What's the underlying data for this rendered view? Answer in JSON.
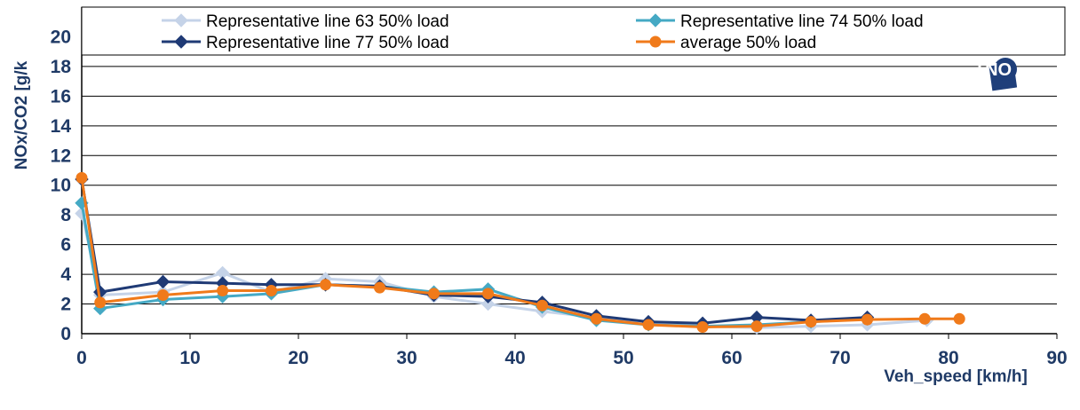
{
  "chart_data": {
    "type": "line",
    "xlabel": "Veh_speed [km/h]",
    "ylabel": "NOx/CO2 [g/k",
    "xlim": [
      0,
      90
    ],
    "ylim": [
      0,
      22
    ],
    "x_ticks": [
      "0",
      "10",
      "20",
      "30",
      "40",
      "50",
      "60",
      "70",
      "80",
      "90"
    ],
    "y_ticks": [
      "0",
      "2",
      "4",
      "6",
      "8",
      "10",
      "12",
      "14",
      "16",
      "18",
      "20"
    ],
    "grid": "horizontal",
    "legend_position": "top",
    "series": [
      {
        "name": "Representative line 63 50% load",
        "color": "#c5d3e8",
        "marker": "diamond",
        "points": [
          [
            0,
            8.1
          ],
          [
            1.7,
            2.6
          ],
          [
            7.5,
            2.8
          ],
          [
            13,
            4.1
          ],
          [
            17.5,
            2.8
          ],
          [
            22.5,
            3.7
          ],
          [
            27.5,
            3.5
          ],
          [
            32.5,
            2.5
          ],
          [
            37.5,
            2.0
          ],
          [
            42.5,
            1.5
          ],
          [
            47.5,
            1.1
          ],
          [
            52.3,
            0.7
          ],
          [
            57.3,
            0.5
          ],
          [
            62.3,
            0.4
          ],
          [
            67.3,
            0.5
          ],
          [
            72.5,
            0.6
          ],
          [
            78.0,
            0.9
          ]
        ]
      },
      {
        "name": "Representative line 74 50% load",
        "color": "#45a9c4",
        "marker": "diamond",
        "points": [
          [
            0,
            8.8
          ],
          [
            1.7,
            1.7
          ],
          [
            7.5,
            2.3
          ],
          [
            13,
            2.5
          ],
          [
            17.5,
            2.7
          ],
          [
            22.5,
            3.3
          ],
          [
            27.5,
            3.2
          ],
          [
            32.5,
            2.8
          ],
          [
            37.5,
            3.0
          ],
          [
            42.5,
            1.8
          ],
          [
            47.5,
            0.9
          ],
          [
            52.3,
            0.6
          ],
          [
            57.3,
            0.5
          ],
          [
            62.3,
            0.6
          ],
          [
            67.3,
            0.8
          ],
          [
            72.5,
            1.0
          ]
        ]
      },
      {
        "name": "Representative line 77 50% load",
        "color": "#1f3a75",
        "marker": "diamond",
        "points": [
          [
            0,
            10.4
          ],
          [
            1.7,
            2.8
          ],
          [
            7.5,
            3.5
          ],
          [
            13,
            3.4
          ],
          [
            17.5,
            3.3
          ],
          [
            22.5,
            3.3
          ],
          [
            27.5,
            3.2
          ],
          [
            32.5,
            2.6
          ],
          [
            37.5,
            2.5
          ],
          [
            42.5,
            2.1
          ],
          [
            47.5,
            1.2
          ],
          [
            52.3,
            0.8
          ],
          [
            57.3,
            0.7
          ],
          [
            62.3,
            1.1
          ],
          [
            67.3,
            0.9
          ],
          [
            72.5,
            1.1
          ]
        ]
      },
      {
        "name": "average 50% load",
        "color": "#f07a1a",
        "marker": "circle",
        "points": [
          [
            0,
            10.5
          ],
          [
            1.7,
            2.1
          ],
          [
            7.5,
            2.6
          ],
          [
            13,
            2.9
          ],
          [
            17.5,
            2.9
          ],
          [
            22.5,
            3.3
          ],
          [
            27.5,
            3.1
          ],
          [
            32.5,
            2.7
          ],
          [
            37.5,
            2.7
          ],
          [
            42.5,
            1.9
          ],
          [
            47.5,
            1.0
          ],
          [
            52.3,
            0.6
          ],
          [
            57.3,
            0.45
          ],
          [
            62.3,
            0.5
          ],
          [
            67.3,
            0.8
          ],
          [
            72.5,
            0.95
          ],
          [
            77.8,
            1.0
          ],
          [
            81.0,
            1.0
          ]
        ]
      }
    ]
  },
  "logo": {
    "text": "TNO",
    "color": "#1f3f7a"
  }
}
